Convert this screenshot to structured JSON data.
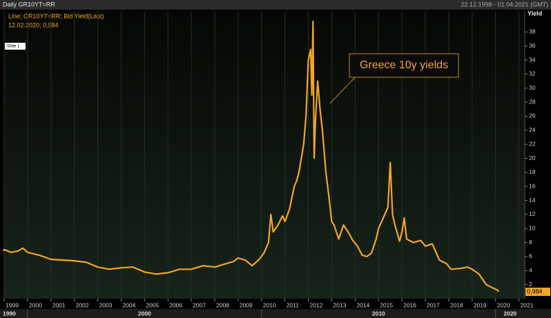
{
  "chart_data": {
    "type": "line",
    "header_left": "Daily GR10YT=RR",
    "header_right": "22.12.1998 - 01.04.2021 (GMT)",
    "subtitle": "12.02.2020; 0,984",
    "tag": "Slide 1",
    "annotation": "Greece 10y yields",
    "y_axis_label": "Yield",
    "x": [
      1998.97,
      1999.0,
      1999.3,
      1999.6,
      1999.8,
      2000.0,
      2000.5,
      2001.0,
      2001.5,
      2002.0,
      2002.5,
      2003.0,
      2003.5,
      2004.0,
      2004.5,
      2005.0,
      2005.5,
      2006.0,
      2006.5,
      2007.0,
      2007.5,
      2008.0,
      2008.5,
      2008.8,
      2009.0,
      2009.3,
      2009.6,
      2009.9,
      2010.1,
      2010.3,
      2010.4,
      2010.5,
      2010.7,
      2010.9,
      2011.0,
      2011.2,
      2011.4,
      2011.5,
      2011.6,
      2011.8,
      2011.9,
      2012.0,
      2012.1,
      2012.15,
      2012.2,
      2012.25,
      2012.3,
      2012.4,
      2012.5,
      2012.6,
      2012.75,
      2012.9,
      2013.0,
      2013.1,
      2013.3,
      2013.5,
      2013.7,
      2013.9,
      2014.1,
      2014.3,
      2014.5,
      2014.7,
      2014.9,
      2015.0,
      2015.2,
      2015.4,
      2015.5,
      2015.6,
      2015.7,
      2015.9,
      2016.0,
      2016.1,
      2016.2,
      2016.5,
      2016.8,
      2017.0,
      2017.3,
      2017.6,
      2017.9,
      2018.1,
      2018.5,
      2018.8,
      2019.0,
      2019.3,
      2019.6,
      2019.9,
      2020.1,
      2020.12
    ],
    "series": [
      {
        "name": "Line; GR10YT=RR; Bid Yield(Last)",
        "color": "#f5a623",
        "values": [
          6.8,
          7.0,
          6.6,
          6.8,
          7.2,
          6.6,
          6.2,
          5.6,
          5.5,
          5.4,
          5.2,
          4.5,
          4.2,
          4.4,
          4.5,
          3.8,
          3.5,
          3.7,
          4.2,
          4.2,
          4.7,
          4.5,
          5.0,
          5.3,
          5.8,
          5.5,
          4.7,
          5.6,
          6.5,
          8.0,
          12.0,
          9.5,
          10.5,
          11.8,
          11.0,
          12.8,
          16.0,
          16.8,
          18.0,
          22.0,
          26.0,
          34.0,
          35.5,
          29.0,
          39.5,
          20.0,
          25.0,
          31.0,
          27.0,
          24.0,
          18.0,
          14.0,
          11.0,
          10.5,
          8.5,
          10.5,
          9.5,
          8.3,
          7.5,
          6.2,
          6.0,
          6.5,
          8.5,
          10.0,
          11.5,
          13.0,
          19.4,
          12.0,
          10.5,
          8.2,
          9.5,
          11.5,
          8.5,
          8.0,
          8.3,
          7.5,
          7.8,
          5.5,
          5.0,
          4.2,
          4.3,
          4.5,
          4.2,
          3.5,
          2.0,
          1.5,
          1.2,
          0.984
        ]
      }
    ],
    "last_value": {
      "value": 0.984,
      "label": "0,984"
    },
    "xlim": [
      1998.97,
      2021.25
    ],
    "xticks": [
      1999,
      2000,
      2001,
      2002,
      2003,
      2004,
      2005,
      2006,
      2007,
      2008,
      2009,
      2010,
      2011,
      2012,
      2013,
      2014,
      2015,
      2016,
      2017,
      2018,
      2019,
      2020,
      2021
    ],
    "decade_ticks": [
      1990,
      2000,
      2010,
      2020
    ],
    "ylim": [
      0,
      40
    ],
    "yticks": [
      2,
      4,
      6,
      8,
      10,
      12,
      14,
      16,
      18,
      20,
      22,
      24,
      26,
      28,
      30,
      32,
      34,
      36,
      38
    ],
    "grid": true
  }
}
